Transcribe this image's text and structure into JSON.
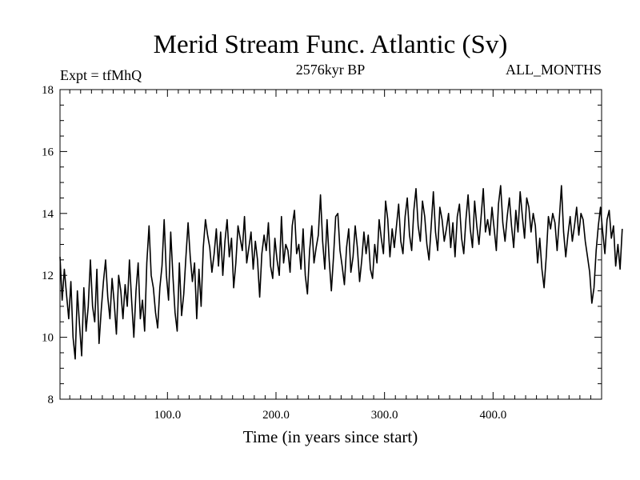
{
  "chart_data": {
    "type": "line",
    "title": "Merid Stream Func. Atlantic (Sv)",
    "subtitle_left": "Expt = tfMhQ",
    "subtitle_center": "2576kyr BP",
    "subtitle_right": "ALL_MONTHS",
    "xlabel": "Time (in years since start)",
    "ylabel": "",
    "xlim": [
      1,
      500
    ],
    "ylim": [
      8,
      18
    ],
    "x_ticks": [
      100,
      200,
      300,
      400
    ],
    "x_tick_labels": [
      "100.0",
      "200.0",
      "300.0",
      "400.0"
    ],
    "y_ticks": [
      8,
      10,
      12,
      14,
      16,
      18
    ],
    "y_tick_labels": [
      "8",
      "10",
      "12",
      "14",
      "16",
      "18"
    ],
    "grid": false,
    "series": [
      {
        "name": "Merid Stream Func. Atlantic",
        "x_start": 1,
        "x_step": 2,
        "values": [
          12.6,
          11.2,
          12.2,
          11.4,
          10.6,
          11.8,
          10.0,
          9.3,
          11.5,
          10.4,
          9.4,
          11.6,
          10.2,
          11.0,
          12.5,
          11.0,
          10.5,
          12.2,
          9.8,
          10.9,
          11.8,
          12.5,
          11.3,
          10.6,
          11.9,
          11.1,
          10.1,
          12.0,
          11.5,
          10.6,
          11.7,
          11.0,
          12.5,
          11.2,
          10.0,
          11.5,
          12.4,
          10.6,
          11.2,
          10.2,
          12.4,
          13.6,
          12.0,
          11.6,
          10.8,
          10.3,
          11.6,
          12.3,
          13.8,
          12.0,
          11.2,
          13.4,
          12.0,
          10.8,
          10.2,
          12.4,
          10.7,
          11.4,
          12.6,
          13.7,
          12.6,
          11.8,
          12.4,
          10.6,
          12.2,
          11.0,
          12.9,
          13.8,
          13.3,
          12.9,
          12.1,
          12.7,
          13.5,
          12.3,
          13.4,
          12.0,
          13.1,
          13.8,
          12.6,
          13.2,
          11.6,
          12.4,
          13.6,
          13.2,
          12.8,
          13.9,
          12.4,
          12.9,
          13.4,
          12.2,
          13.1,
          12.5,
          11.3,
          12.7,
          13.3,
          12.8,
          13.7,
          12.3,
          11.9,
          13.2,
          12.5,
          12.0,
          13.9,
          12.4,
          13.0,
          12.8,
          12.1,
          13.6,
          14.1,
          12.7,
          13.0,
          12.2,
          13.5,
          12.0,
          11.4,
          12.8,
          13.6,
          12.4,
          12.9,
          13.3,
          14.6,
          13.1,
          12.2,
          13.8,
          12.5,
          11.5,
          12.6,
          13.9,
          14.0,
          12.8,
          12.3,
          11.7,
          12.9,
          13.5,
          12.1,
          12.6,
          13.6,
          12.9,
          11.8,
          12.5,
          13.4,
          12.7,
          13.3,
          12.2,
          11.9,
          13.0,
          12.4,
          13.8,
          13.2,
          12.7,
          14.4,
          13.8,
          12.6,
          13.5,
          12.9,
          13.6,
          14.3,
          13.1,
          12.7,
          13.9,
          14.5,
          13.3,
          12.8,
          14.1,
          14.8,
          13.6,
          13.1,
          14.4,
          13.9,
          13.0,
          12.5,
          13.6,
          14.7,
          13.4,
          12.8,
          14.2,
          13.8,
          13.1,
          13.5,
          14.0,
          12.9,
          13.7,
          12.6,
          13.9,
          14.3,
          13.2,
          12.7,
          13.8,
          14.6,
          13.5,
          12.9,
          14.4,
          13.6,
          13.0,
          13.9,
          14.8,
          13.4,
          13.8,
          13.3,
          14.2,
          13.5,
          12.8,
          14.3,
          14.9,
          13.7,
          13.1,
          13.9,
          14.5,
          13.6,
          12.9,
          14.1,
          13.4,
          14.7,
          13.9,
          13.2,
          14.5,
          14.2,
          13.4,
          14.0,
          13.6,
          12.4,
          13.2,
          12.2,
          11.6,
          12.6,
          13.9,
          13.5,
          14.0,
          13.7,
          12.8,
          13.8,
          14.9,
          13.4,
          12.6,
          13.3,
          13.9,
          13.1,
          13.6,
          14.2,
          13.3,
          14.0,
          13.8,
          13.1,
          12.6,
          12.1,
          11.1,
          11.6,
          12.8,
          13.6,
          14.2,
          13.4,
          12.7,
          13.8,
          14.1,
          13.2,
          13.6,
          12.3,
          13.0,
          12.2,
          13.5
        ]
      }
    ]
  }
}
